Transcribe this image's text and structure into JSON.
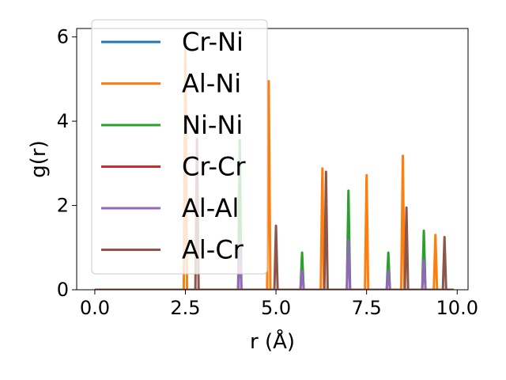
{
  "chart_data": {
    "type": "line",
    "title": "",
    "xlabel": "r (Å)",
    "ylabel": "g(r)",
    "xlim": [
      -0.5,
      10.3
    ],
    "ylim": [
      0,
      6.2
    ],
    "x_ticks": [
      0.0,
      2.5,
      5.0,
      7.5,
      10.0
    ],
    "x_tick_labels": [
      "0.0",
      "2.5",
      "5.0",
      "7.5",
      "10.0"
    ],
    "y_ticks": [
      0,
      2,
      4,
      6
    ],
    "y_tick_labels": [
      "0",
      "2",
      "4",
      "6"
    ],
    "grid": false,
    "legend": "upper-left",
    "x_range": [
      0.0,
      9.9
    ],
    "peak_half_width": 0.045,
    "series": [
      {
        "name": "Cr-Ni",
        "color": "#1f77b4",
        "peaks": []
      },
      {
        "name": "Al-Ni",
        "color": "#ff7f0e",
        "peaks": [
          [
            2.5,
            5.8
          ],
          [
            4.8,
            4.95
          ],
          [
            6.28,
            2.88
          ],
          [
            7.5,
            2.72
          ],
          [
            8.5,
            3.18
          ],
          [
            9.4,
            1.3
          ]
        ]
      },
      {
        "name": "Ni-Ni",
        "color": "#2ca02c",
        "peaks": [
          [
            4.0,
            3.55
          ],
          [
            5.72,
            0.88
          ],
          [
            7.0,
            2.35
          ],
          [
            8.1,
            0.88
          ],
          [
            9.08,
            1.4
          ]
        ]
      },
      {
        "name": "Cr-Cr",
        "color": "#d62728",
        "peaks": []
      },
      {
        "name": "Al-Al",
        "color": "#9467bd",
        "peaks": [
          [
            4.0,
            1.2
          ],
          [
            5.72,
            0.45
          ],
          [
            7.0,
            1.18
          ],
          [
            8.1,
            0.45
          ],
          [
            9.08,
            0.7
          ]
        ]
      },
      {
        "name": "Al-Cr",
        "color": "#8c564b",
        "peaks": [
          [
            2.82,
            3.58
          ],
          [
            5.0,
            1.52
          ],
          [
            6.38,
            2.8
          ],
          [
            8.6,
            1.95
          ],
          [
            9.65,
            1.25
          ]
        ]
      }
    ]
  }
}
